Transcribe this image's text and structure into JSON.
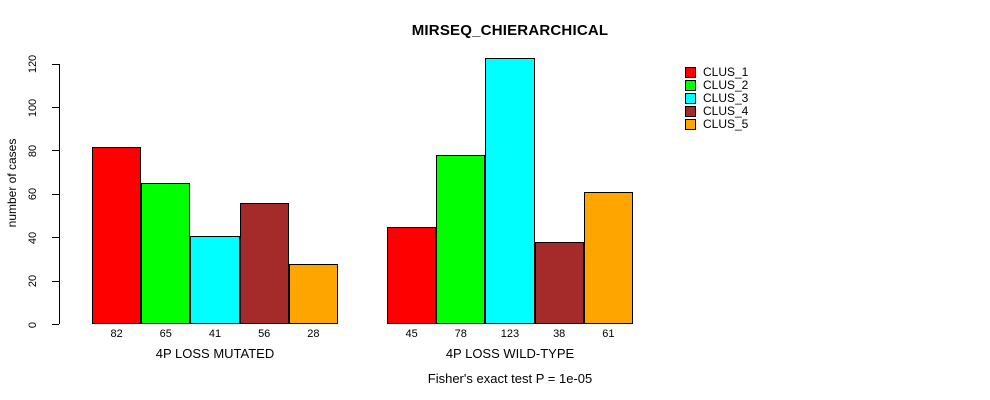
{
  "chart_data": {
    "type": "bar",
    "title": "MIRSEQ_CHIERARCHICAL",
    "ylabel": "number of cases",
    "xlabel": "",
    "categories": [
      "4P LOSS MUTATED",
      "4P LOSS WILD-TYPE"
    ],
    "series": [
      {
        "name": "CLUS_1",
        "color": "#FF0000",
        "values": [
          82,
          45
        ]
      },
      {
        "name": "CLUS_2",
        "color": "#00FF00",
        "values": [
          65,
          78
        ]
      },
      {
        "name": "CLUS_3",
        "color": "#00FFFF",
        "values": [
          41,
          123
        ]
      },
      {
        "name": "CLUS_4",
        "color": "#A52A2A",
        "values": [
          56,
          38
        ]
      },
      {
        "name": "CLUS_5",
        "color": "#FFA500",
        "values": [
          28,
          61
        ]
      }
    ],
    "yticks": [
      0,
      20,
      40,
      60,
      80,
      100,
      120
    ],
    "ylim": [
      0,
      120
    ],
    "grid": false,
    "legend_position": "top-right",
    "bar_values_shown": true,
    "annotation": "Fisher's exact test P = 1e-05",
    "axis_color": "#000000",
    "background": "#FFFFFF"
  }
}
